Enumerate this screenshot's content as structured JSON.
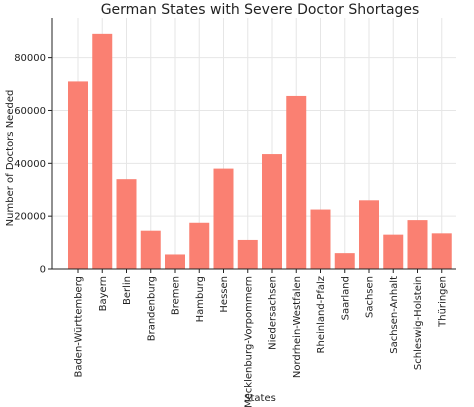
{
  "chart_data": {
    "type": "bar",
    "title": "German States with Severe Doctor Shortages",
    "xlabel": "States",
    "ylabel": "Number of Doctors Needed",
    "categories": [
      "Baden-Württemberg",
      "Bayern",
      "Berlin",
      "Brandenburg",
      "Bremen",
      "Hamburg",
      "Hessen",
      "Mecklenburg-Vorpommern",
      "Niedersachsen",
      "Nordrhein-Westfalen",
      "Rheinland-Pfalz",
      "Saarland",
      "Sachsen",
      "Sachsen-Anhalt",
      "Schleswig-Holstein",
      "Thüringen"
    ],
    "values": [
      71000,
      89000,
      34000,
      14500,
      5500,
      17500,
      38000,
      11000,
      43500,
      65500,
      22500,
      6000,
      26000,
      13000,
      18500,
      13500
    ],
    "ylim": [
      0,
      95000
    ],
    "yticks": [
      0,
      20000,
      40000,
      60000,
      80000
    ],
    "ytick_labels": [
      "0",
      "20000",
      "40000",
      "60000",
      "80000"
    ],
    "grid": true,
    "bar_color": "#fa8072"
  }
}
